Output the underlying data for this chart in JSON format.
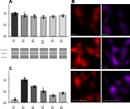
{
  "panel_A": {
    "title": "A",
    "categories": [
      "Ctrl",
      "100",
      "500",
      "1000",
      "100",
      "500"
    ],
    "values": [
      1.0,
      0.92,
      0.88,
      0.85,
      0.87,
      0.9
    ],
    "errors": [
      0.05,
      0.04,
      0.05,
      0.04,
      0.05,
      0.04
    ],
    "colors": [
      "#333333",
      "#888888",
      "#aaaaaa",
      "#bbbbbb",
      "#cccccc",
      "#dddddd"
    ],
    "ylim": [
      0,
      1.4
    ],
    "yticks": [
      0,
      0.5,
      1.0
    ]
  },
  "panel_C": {
    "title": "C",
    "categories": [
      "Ctrl",
      "100",
      "500",
      "1000",
      "100",
      "500"
    ],
    "values": [
      0.12,
      1.0,
      0.72,
      0.5,
      0.32,
      0.42
    ],
    "errors": [
      0.02,
      0.05,
      0.04,
      0.04,
      0.03,
      0.03
    ],
    "colors": [
      "#cccccc",
      "#222222",
      "#555555",
      "#777777",
      "#999999",
      "#bbbbbb"
    ],
    "ylim": [
      0,
      1.4
    ],
    "yticks": [
      0,
      0.5,
      1.0
    ]
  },
  "wb_labels": [
    "p-Smad2",
    "Smad2",
    "GAPDH"
  ],
  "right_rows": [
    {
      "label": "Control"
    },
    {
      "label": "TGF-β1"
    },
    {
      "label": "TGF-β1 + 1000 μM"
    }
  ],
  "bg_color": "#ffffff"
}
